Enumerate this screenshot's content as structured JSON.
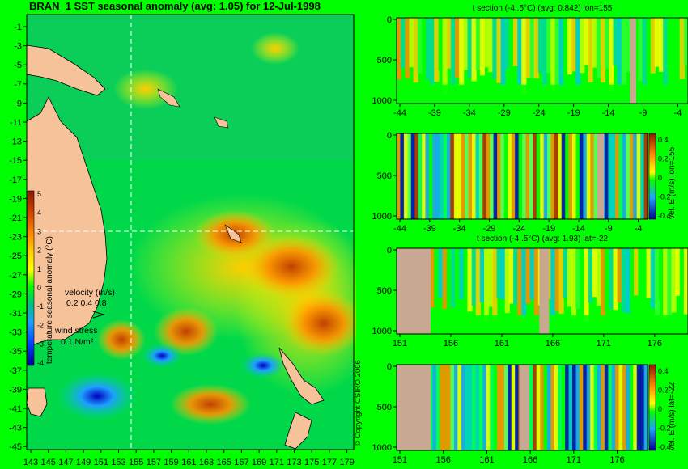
{
  "map": {
    "title": "BRAN_1 SST seasonal anomaly (avg: 1.05) for 12-Jul-1998",
    "lat_ticks": [
      "-1",
      "-3",
      "-5",
      "-7",
      "-9",
      "-11",
      "-13",
      "-15",
      "-17",
      "-19",
      "-21",
      "-23",
      "-25",
      "-27",
      "-29",
      "-31",
      "-33",
      "-35",
      "-37",
      "-39",
      "-41",
      "-43",
      "-45"
    ],
    "lon_ticks": [
      "143",
      "145",
      "147",
      "149",
      "151",
      "153",
      "155",
      "157",
      "159",
      "161",
      "163",
      "165",
      "167",
      "169",
      "171",
      "173",
      "175",
      "177",
      "179"
    ],
    "colorbar": {
      "ticks": [
        "5",
        "4",
        "3",
        "2",
        "1",
        "0",
        "-1",
        "-2",
        "-3",
        "-4"
      ],
      "label": "temperature seasonal anomaly (°C)"
    },
    "velocity_legend": {
      "title": "velocity (m/s)",
      "scale": "0.2 0.4 0.8"
    },
    "wind_legend": {
      "title": "wind stress",
      "scale": "0.1 N/m²"
    },
    "crosshair": {
      "lon": 155,
      "lat": -22
    },
    "copyright": "© Copyright CSIRO 2006"
  },
  "sections": [
    {
      "title": "t section (-4..5°C) (avg: 0.842) lon=155",
      "x_ticks": [
        "-44",
        "-39",
        "-34",
        "-29",
        "-24",
        "-19",
        "-14",
        "-9",
        "-4"
      ],
      "y_ticks": [
        "0",
        "500",
        "1000"
      ],
      "side_label": ""
    },
    {
      "title": "",
      "x_ticks": [
        "-44",
        "-39",
        "-34",
        "-29",
        "-24",
        "-19",
        "-14",
        "-9",
        "-4"
      ],
      "y_ticks": [
        "0",
        "500",
        "1000"
      ],
      "side_label": "vel. E (m/s) lon=155",
      "colorbar_ticks": [
        "0.4",
        "0.2",
        "0",
        "-0.2",
        "-0.4"
      ]
    },
    {
      "title": "t section (-4..5°C) (avg: 1.93) lat=-22",
      "x_ticks": [
        "151",
        "156",
        "161",
        "166",
        "171",
        "176"
      ],
      "y_ticks": [
        "0",
        "500",
        "1000"
      ],
      "side_label": ""
    },
    {
      "title": "",
      "x_ticks": [
        "151",
        "156",
        "161",
        "166",
        "171",
        "176"
      ],
      "y_ticks": [
        "0",
        "500",
        "1000"
      ],
      "side_label": "vel. E (m/s) lat=-22",
      "colorbar_ticks": [
        "0.4",
        "0.2",
        "0",
        "-0.2",
        "-0.4"
      ]
    }
  ],
  "colors": {
    "background": "#00ff00",
    "land": "#f5c29a",
    "section_land": "#c8a890",
    "warm": "#ff8c00",
    "hot": "#b84000",
    "cool": "#1ea0ff",
    "cold": "#0000c0"
  }
}
